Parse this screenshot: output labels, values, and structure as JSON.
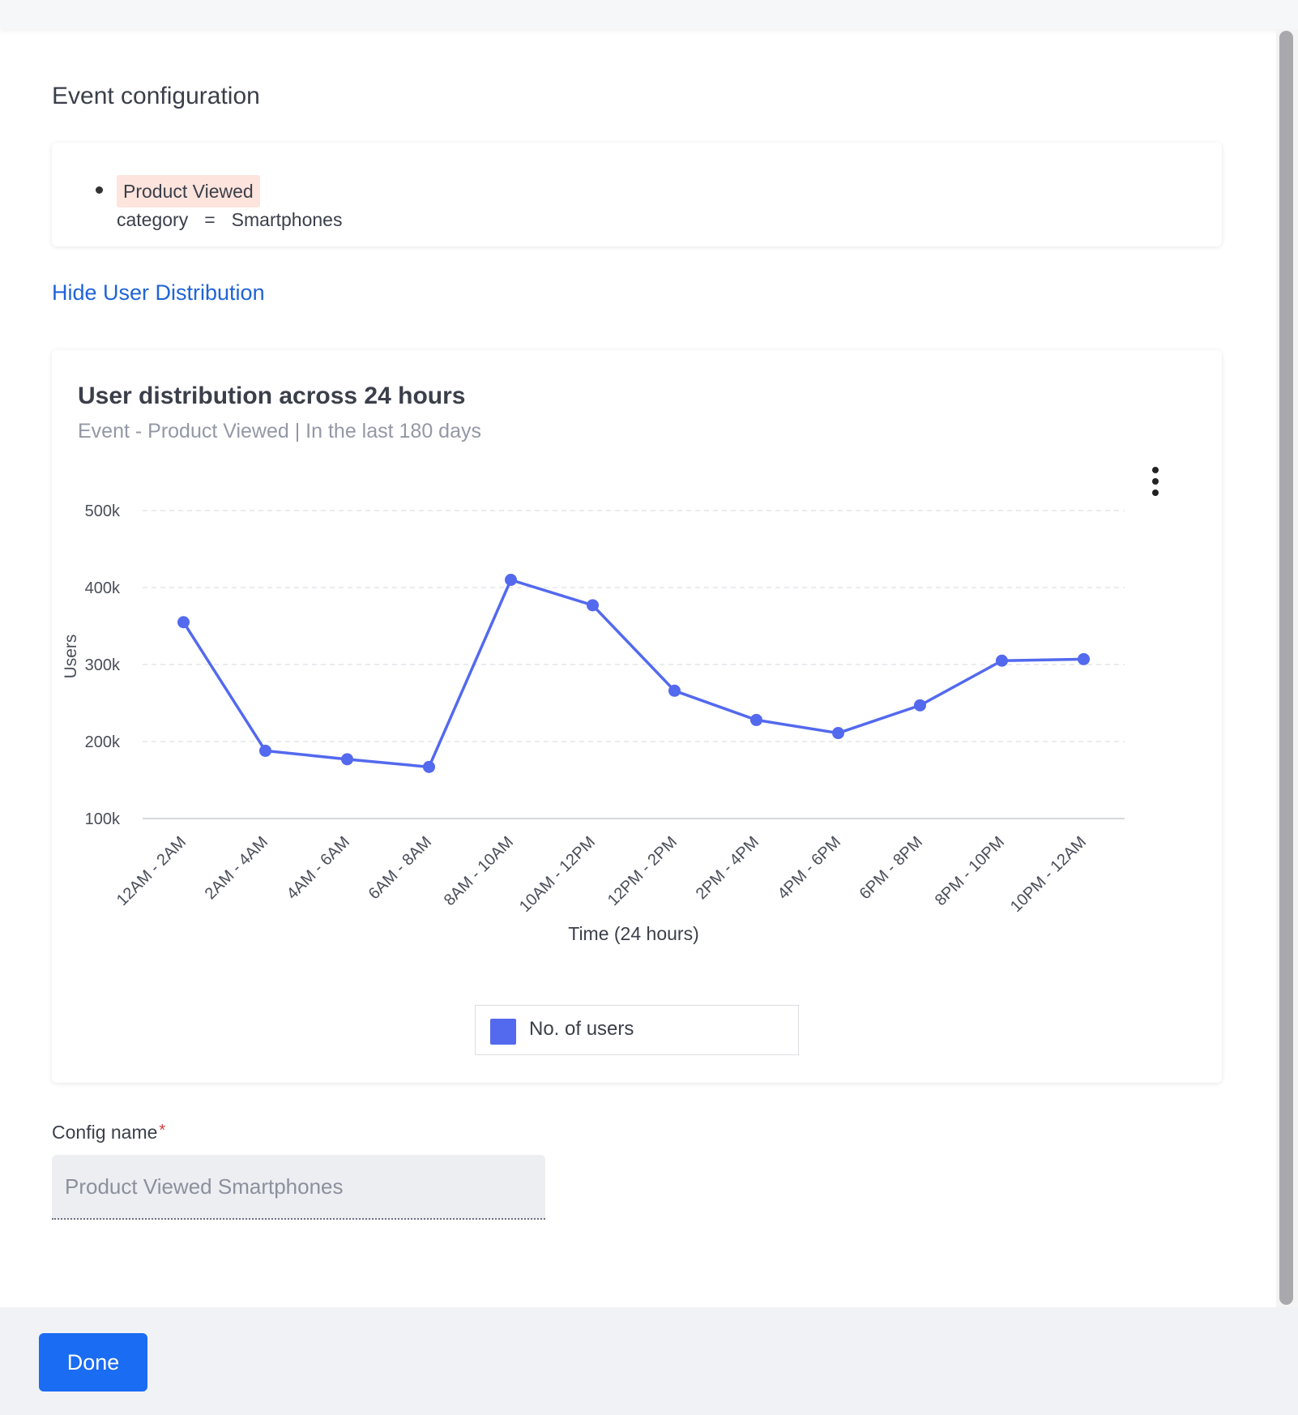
{
  "page": {
    "heading": "Event configuration",
    "toggle_link": "Hide User Distribution"
  },
  "event": {
    "name": "Product Viewed",
    "filter": {
      "property": "category",
      "operator": "=",
      "value": "Smartphones"
    }
  },
  "chart_card": {
    "title": "User distribution across 24 hours",
    "subtitle": "Event - Product Viewed | In the last 180 days"
  },
  "chart_data": {
    "type": "line",
    "title": "User distribution across 24 hours",
    "subtitle": "Event - Product Viewed | In the last 180 days",
    "xlabel": "Time (24 hours)",
    "ylabel": "Users",
    "categories": [
      "12AM - 2AM",
      "2AM - 4AM",
      "4AM - 6AM",
      "6AM - 8AM",
      "8AM - 10AM",
      "10AM - 12PM",
      "12PM - 2PM",
      "2PM - 4PM",
      "4PM - 6PM",
      "6PM - 8PM",
      "8PM - 10PM",
      "10PM - 12AM"
    ],
    "series": [
      {
        "name": "No. of users",
        "color": "#5369ee",
        "values": [
          355000,
          188000,
          177000,
          167000,
          410000,
          377000,
          266000,
          228000,
          211000,
          247000,
          305000,
          307000
        ]
      }
    ],
    "ylim": [
      100000,
      500000
    ],
    "yticks": [
      100000,
      200000,
      300000,
      400000,
      500000
    ],
    "ytick_labels": [
      "100k",
      "200k",
      "300k",
      "400k",
      "500k"
    ],
    "grid": true,
    "legend": "bottom-center"
  },
  "legend": {
    "label": "No. of users",
    "color": "#5369ee"
  },
  "config": {
    "label": "Config name",
    "required_mark": "*",
    "value": "Product Viewed Smartphones"
  },
  "footer": {
    "done_label": "Done"
  },
  "icons": {
    "menu": "more-vertical-icon"
  }
}
